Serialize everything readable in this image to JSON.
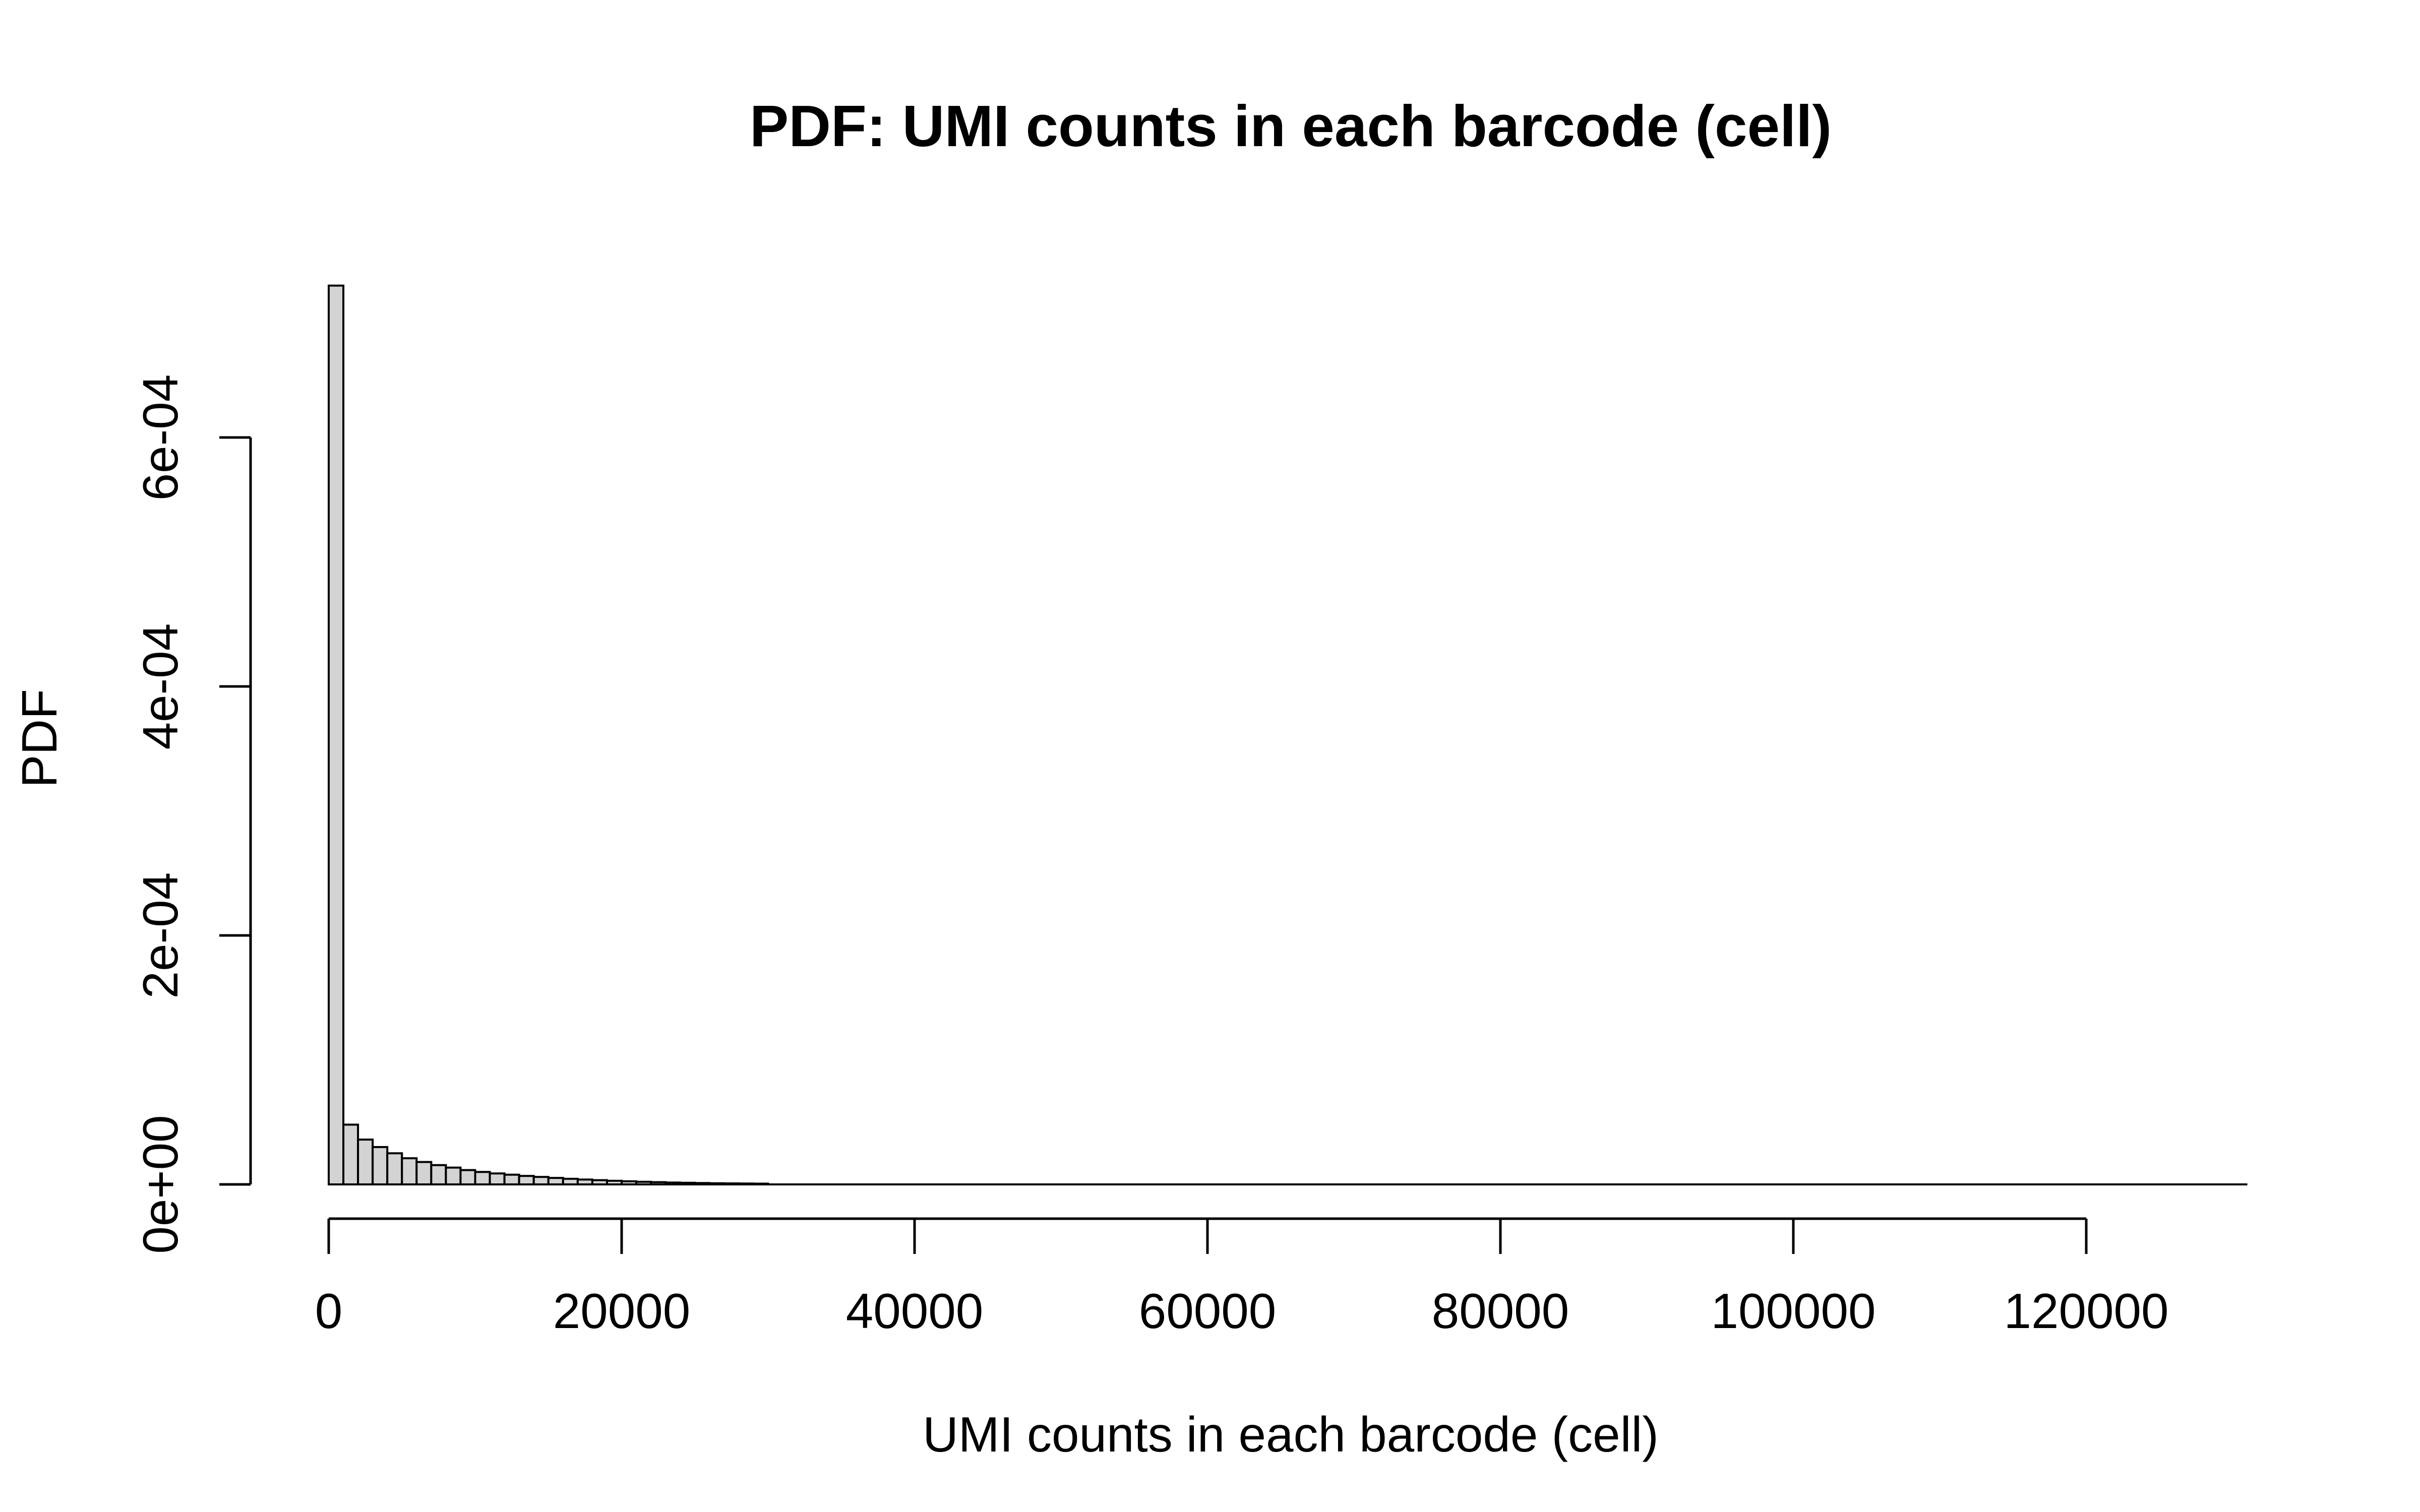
{
  "chart_data": {
    "type": "bar",
    "title": "PDF: UMI counts in each barcode (cell)",
    "xlabel": "UMI counts in each barcode (cell)",
    "ylabel": "PDF",
    "x_ticks": [
      "0",
      "20000",
      "40000",
      "60000",
      "80000",
      "100000",
      "120000"
    ],
    "y_ticks": [
      "0e+00",
      "2e-04",
      "4e-04",
      "6e-04"
    ],
    "x_tick_values": [
      0,
      20000,
      40000,
      60000,
      80000,
      100000,
      120000
    ],
    "y_tick_values": [
      0,
      0.0002,
      0.0004,
      0.0006
    ],
    "xlim": [
      0,
      131000
    ],
    "ylim": [
      0,
      0.00072
    ],
    "bin_width": 1000,
    "bins_start": 0,
    "values": [
      0.000722,
      4.8e-05,
      3.6e-05,
      3e-05,
      2.5e-05,
      2.1e-05,
      1.8e-05,
      1.55e-05,
      1.35e-05,
      1.15e-05,
      1e-05,
      8.8e-06,
      7.8e-06,
      6.8e-06,
      6e-06,
      5.2e-06,
      4.5e-06,
      3.9e-06,
      3.4e-06,
      2.9e-06,
      2.5e-06,
      2.1e-06,
      1.8e-06,
      1.5e-06,
      1.3e-06,
      1.1e-06,
      9e-07,
      8e-07,
      7e-07,
      6e-07
    ],
    "bar_fill": "#d3d3d3",
    "bar_stroke": "#000000",
    "grid": false,
    "legend": "none"
  }
}
